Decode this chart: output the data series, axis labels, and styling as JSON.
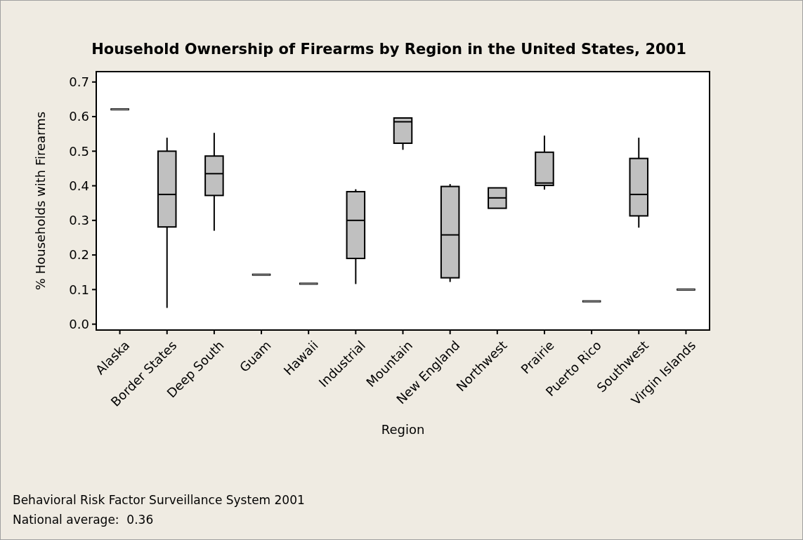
{
  "chart_data": {
    "type": "box",
    "title": "Household Ownership of Firearms by Region in the United States, 2001",
    "xlabel": "Region",
    "ylabel": "% Households with Firearms",
    "categories": [
      "Alaska",
      "Border States",
      "Deep South",
      "Guam",
      "Hawaii",
      "Industrial",
      "Mountain",
      "New England",
      "Northwest",
      "Prairie",
      "Puerto Rico",
      "Southwest",
      "Virgin Islands"
    ],
    "boxes": [
      {
        "low": 0.621,
        "q1": 0.621,
        "median": 0.621,
        "q3": 0.621,
        "high": 0.621
      },
      {
        "low": 0.047,
        "q1": 0.281,
        "median": 0.375,
        "q3": 0.5,
        "high": 0.539
      },
      {
        "low": 0.27,
        "q1": 0.372,
        "median": 0.435,
        "q3": 0.486,
        "high": 0.553
      },
      {
        "low": 0.143,
        "q1": 0.143,
        "median": 0.143,
        "q3": 0.143,
        "high": 0.143
      },
      {
        "low": 0.117,
        "q1": 0.117,
        "median": 0.117,
        "q3": 0.117,
        "high": 0.117
      },
      {
        "low": 0.116,
        "q1": 0.19,
        "median": 0.3,
        "q3": 0.383,
        "high": 0.39
      },
      {
        "low": 0.504,
        "q1": 0.523,
        "median": 0.585,
        "q3": 0.596,
        "high": 0.596
      },
      {
        "low": 0.122,
        "q1": 0.134,
        "median": 0.258,
        "q3": 0.398,
        "high": 0.405
      },
      {
        "low": 0.335,
        "q1": 0.335,
        "median": 0.365,
        "q3": 0.394,
        "high": 0.394
      },
      {
        "low": 0.389,
        "q1": 0.401,
        "median": 0.408,
        "q3": 0.497,
        "high": 0.545
      },
      {
        "low": 0.066,
        "q1": 0.066,
        "median": 0.066,
        "q3": 0.066,
        "high": 0.066
      },
      {
        "low": 0.279,
        "q1": 0.313,
        "median": 0.375,
        "q3": 0.479,
        "high": 0.539
      },
      {
        "low": 0.1,
        "q1": 0.1,
        "median": 0.1,
        "q3": 0.1,
        "high": 0.1
      }
    ],
    "color": "#c0c0c0",
    "ylim": [
      -0.017,
      0.73
    ],
    "yticks": [
      {
        "value": 0,
        "label": "0.0"
      },
      {
        "value": 0.1,
        "label": "0.1"
      },
      {
        "value": 0.2,
        "label": "0.2"
      },
      {
        "value": 0.3,
        "label": "0.3"
      },
      {
        "value": 0.4,
        "label": "0.4"
      },
      {
        "value": 0.5,
        "label": "0.5"
      },
      {
        "value": 0.6,
        "label": "0.6"
      },
      {
        "value": 0.7,
        "label": "0.7"
      }
    ],
    "grid": false,
    "annotations": [
      "Behavioral Risk Factor Surveillance System 2001",
      "National average:  0.36"
    ]
  }
}
